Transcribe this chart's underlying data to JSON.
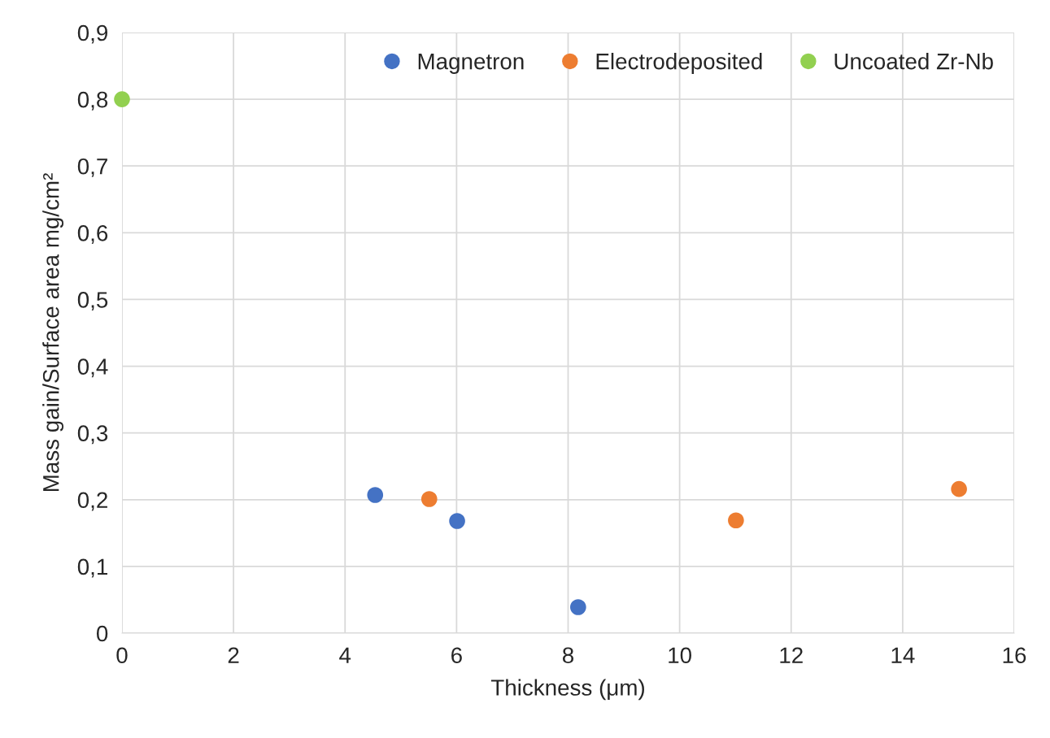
{
  "chart_data": {
    "type": "scatter",
    "xlabel": "Thickness (μm)",
    "ylabel": "Mass gain/Surface area mg/cm²",
    "xlim": [
      0,
      16
    ],
    "xticks": [
      0,
      2,
      4,
      6,
      8,
      10,
      12,
      14,
      16
    ],
    "ylim": [
      0,
      0.9
    ],
    "yticks": [
      0,
      {
        "value": 0.1,
        "label": "0,1"
      },
      {
        "value": 0.2,
        "label": "0,2"
      },
      {
        "value": 0.3,
        "label": "0,3"
      },
      {
        "value": 0.4,
        "label": "0,4"
      },
      {
        "value": 0.5,
        "label": "0,5"
      },
      {
        "value": 0.6,
        "label": "0,6"
      },
      {
        "value": 0.7,
        "label": "0,7"
      },
      {
        "value": 0.8,
        "label": "0,8"
      },
      {
        "value": 0.9,
        "label": "0,9"
      }
    ],
    "grid": true,
    "legend": "top right",
    "marker": "circle",
    "series": [
      {
        "name": "Magnetron",
        "color": "#4472c4",
        "x": [
          4.54,
          6.01,
          8.18
        ],
        "values": [
          0.207,
          0.168,
          0.039
        ]
      },
      {
        "name": "Electrodeposited",
        "color": "#ed7d31",
        "x": [
          5.51,
          11.01,
          15.01
        ],
        "values": [
          0.201,
          0.169,
          0.216
        ]
      },
      {
        "name": "Uncoated Zr-Nb",
        "color": "#92d050",
        "x": [
          0
        ],
        "values": [
          0.8
        ]
      }
    ]
  }
}
